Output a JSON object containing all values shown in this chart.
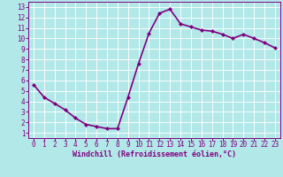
{
  "x": [
    0,
    1,
    2,
    3,
    4,
    5,
    6,
    7,
    8,
    9,
    10,
    11,
    12,
    13,
    14,
    15,
    16,
    17,
    18,
    19,
    20,
    21,
    22,
    23
  ],
  "y": [
    5.6,
    4.4,
    3.8,
    3.2,
    2.4,
    1.8,
    1.6,
    1.4,
    1.4,
    4.4,
    7.6,
    10.5,
    12.4,
    12.8,
    11.4,
    11.1,
    10.8,
    10.7,
    10.4,
    10.0,
    10.4,
    10.0,
    9.6,
    9.1
  ],
  "line_color": "#800080",
  "marker": "D",
  "marker_size": 2.0,
  "background_color": "#b2e8e8",
  "grid_color": "#c8e8e8",
  "xlabel": "Windchill (Refroidissement éolien,°C)",
  "xlabel_color": "#800080",
  "tick_color": "#800080",
  "spine_color": "#800080",
  "xlim": [
    -0.5,
    23.5
  ],
  "ylim": [
    0.5,
    13.5
  ],
  "yticks": [
    1,
    2,
    3,
    4,
    5,
    6,
    7,
    8,
    9,
    10,
    11,
    12,
    13
  ],
  "xticks": [
    0,
    1,
    2,
    3,
    4,
    5,
    6,
    7,
    8,
    9,
    10,
    11,
    12,
    13,
    14,
    15,
    16,
    17,
    18,
    19,
    20,
    21,
    22,
    23
  ],
  "font_family": "monospace",
  "linewidth": 1.2,
  "xlabel_fontsize": 6.0,
  "tick_fontsize": 5.5
}
